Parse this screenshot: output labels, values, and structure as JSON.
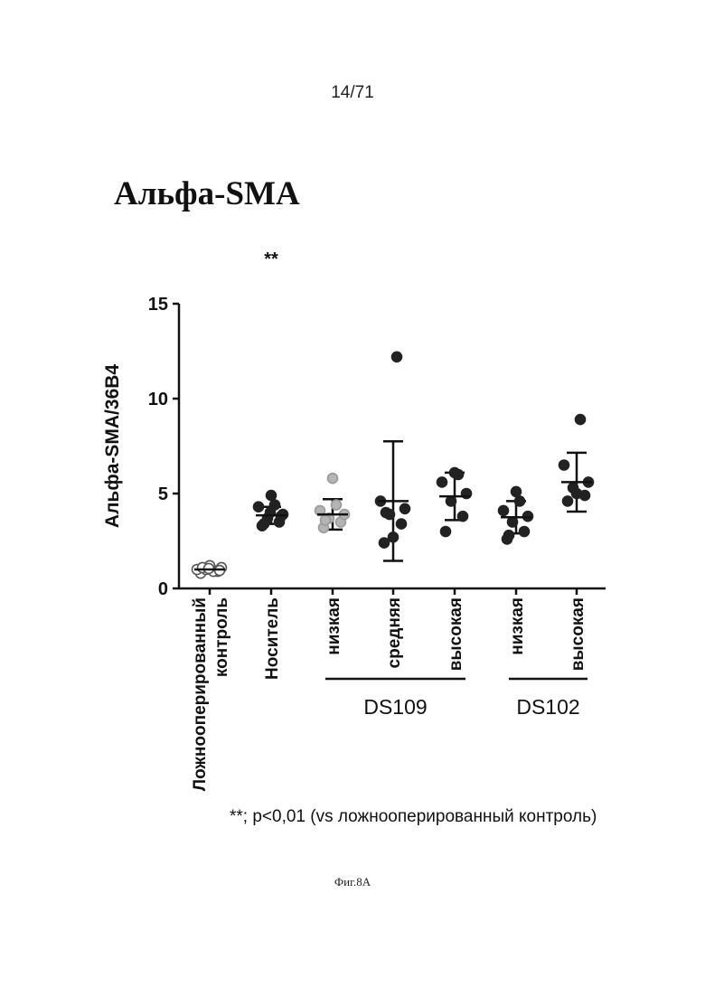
{
  "page": {
    "page_number": "14/71",
    "figure_title": "Альфа-SMA",
    "footnote": "**; p<0,01 (vs ложнооперированный контроль)",
    "caption": "Фиг.8А"
  },
  "chart_data": {
    "type": "scatter",
    "title": "Альфа-SMA",
    "ylabel": "Альфа-SMA/36B4",
    "xlabel": "",
    "ylim": [
      0,
      15
    ],
    "yticks": [
      0,
      5,
      10,
      15
    ],
    "grid": false,
    "legend": "none",
    "categories": [
      [
        "Ложнооперированный",
        "контроль"
      ],
      [
        "Носитель"
      ],
      [
        "низкая"
      ],
      [
        "средняя"
      ],
      [
        "высокая"
      ],
      [
        "низкая"
      ],
      [
        "высокая"
      ]
    ],
    "group_labels": [
      {
        "label": "DS109",
        "from": 2,
        "to": 4
      },
      {
        "label": "DS102",
        "from": 5,
        "to": 6
      }
    ],
    "significance": [
      {
        "category": 1,
        "label": "**"
      }
    ],
    "series": [
      {
        "fill": "#ffffff",
        "stroke": "#555555",
        "points": [
          0.8,
          0.9,
          1.0,
          1.1,
          1.0,
          0.9,
          1.2,
          1.1,
          0.95,
          1.05
        ],
        "mean": 1.0,
        "sd": 0.15
      },
      {
        "fill": "#222222",
        "stroke": "#222222",
        "points": [
          3.3,
          3.5,
          3.7,
          3.9,
          4.3,
          4.4,
          4.9,
          3.4,
          3.8,
          4.0
        ],
        "mean": 3.85,
        "sd": 0.45
      },
      {
        "fill": "#b4b4b4",
        "stroke": "#9a9a9a",
        "points": [
          3.2,
          3.5,
          3.7,
          3.9,
          4.1,
          4.4,
          5.8,
          3.6
        ],
        "mean": 3.9,
        "sd": 0.8
      },
      {
        "fill": "#222222",
        "stroke": "#222222",
        "points": [
          2.4,
          3.4,
          3.9,
          4.2,
          4.6,
          12.2,
          2.7,
          4.0
        ],
        "mean": 4.6,
        "sd": 3.15
      },
      {
        "fill": "#222222",
        "stroke": "#222222",
        "points": [
          3.0,
          3.8,
          4.6,
          5.0,
          5.6,
          6.0,
          6.1
        ],
        "mean": 4.85,
        "sd": 1.25
      },
      {
        "fill": "#222222",
        "stroke": "#222222",
        "points": [
          2.6,
          3.0,
          3.5,
          3.8,
          4.1,
          4.6,
          5.1,
          2.8
        ],
        "mean": 3.75,
        "sd": 0.85
      },
      {
        "fill": "#222222",
        "stroke": "#222222",
        "points": [
          4.6,
          4.9,
          5.3,
          5.6,
          6.5,
          8.9,
          5.0
        ],
        "mean": 5.6,
        "sd": 1.55
      }
    ]
  }
}
